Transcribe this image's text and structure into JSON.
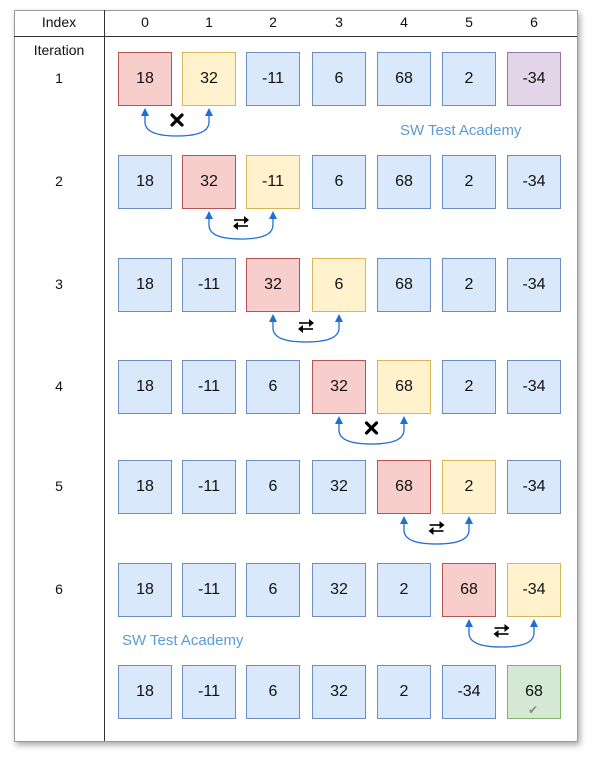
{
  "header": {
    "index_label": "Index",
    "columns": [
      "0",
      "1",
      "2",
      "3",
      "4",
      "5",
      "6"
    ]
  },
  "iteration_label": "Iteration",
  "watermark": "SW Test Academy",
  "colors": {
    "normal": "#dae8fc",
    "current": "#f8cecc",
    "compare": "#fff2cc",
    "last": "#e1d5e7",
    "sorted": "#d5e8d4",
    "arrow": "#1f6fd0"
  },
  "rows": [
    {
      "label": "1",
      "values": [
        "18",
        "32",
        "-11",
        "6",
        "68",
        "2",
        "-34"
      ],
      "colors": [
        "current",
        "compare",
        "normal",
        "normal",
        "normal",
        "normal",
        "last"
      ],
      "swap": {
        "from": 0,
        "to": 1,
        "action": "no-swap"
      }
    },
    {
      "label": "2",
      "values": [
        "18",
        "32",
        "-11",
        "6",
        "68",
        "2",
        "-34"
      ],
      "colors": [
        "normal",
        "current",
        "compare",
        "normal",
        "normal",
        "normal",
        "normal"
      ],
      "swap": {
        "from": 1,
        "to": 2,
        "action": "swap"
      }
    },
    {
      "label": "3",
      "values": [
        "18",
        "-11",
        "32",
        "6",
        "68",
        "2",
        "-34"
      ],
      "colors": [
        "normal",
        "normal",
        "current",
        "compare",
        "normal",
        "normal",
        "normal"
      ],
      "swap": {
        "from": 2,
        "to": 3,
        "action": "swap"
      }
    },
    {
      "label": "4",
      "values": [
        "18",
        "-11",
        "6",
        "32",
        "68",
        "2",
        "-34"
      ],
      "colors": [
        "normal",
        "normal",
        "normal",
        "current",
        "compare",
        "normal",
        "normal"
      ],
      "swap": {
        "from": 3,
        "to": 4,
        "action": "no-swap"
      }
    },
    {
      "label": "5",
      "values": [
        "18",
        "-11",
        "6",
        "32",
        "68",
        "2",
        "-34"
      ],
      "colors": [
        "normal",
        "normal",
        "normal",
        "normal",
        "current",
        "compare",
        "normal"
      ],
      "swap": {
        "from": 4,
        "to": 5,
        "action": "swap"
      }
    },
    {
      "label": "6",
      "values": [
        "18",
        "-11",
        "6",
        "32",
        "2",
        "68",
        "-34"
      ],
      "colors": [
        "normal",
        "normal",
        "normal",
        "normal",
        "normal",
        "current",
        "compare"
      ],
      "swap": {
        "from": 5,
        "to": 6,
        "action": "swap"
      }
    },
    {
      "label": "",
      "values": [
        "18",
        "-11",
        "6",
        "32",
        "2",
        "-34",
        "68"
      ],
      "colors": [
        "normal",
        "normal",
        "normal",
        "normal",
        "normal",
        "normal",
        "sorted"
      ],
      "swap": null,
      "final_check_icon": "checkmark-icon"
    }
  ]
}
